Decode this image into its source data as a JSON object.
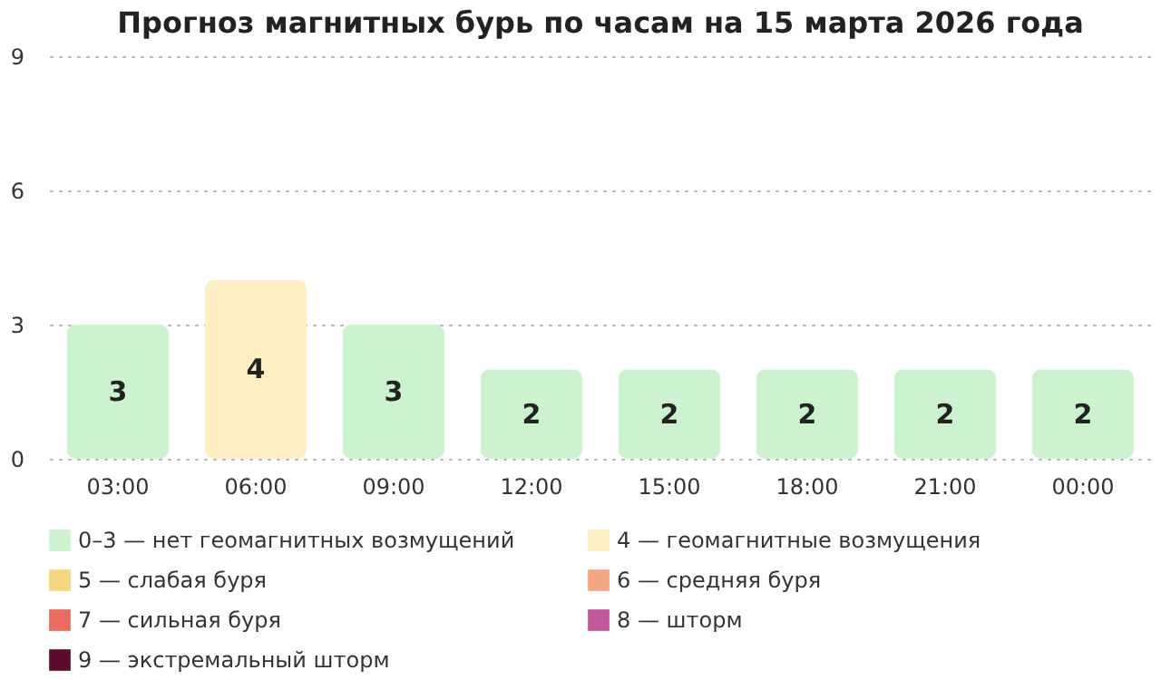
{
  "chart_data": {
    "type": "bar",
    "title": "Прогноз магнитных бурь по часам на 15 марта 2026 года",
    "categories": [
      "03:00",
      "06:00",
      "09:00",
      "12:00",
      "15:00",
      "18:00",
      "21:00",
      "00:00"
    ],
    "series": [
      {
        "name": "0–3 — нет геомагнитных возмущений",
        "color": "#cdf2cf",
        "values": [
          3,
          null,
          3,
          2,
          2,
          2,
          2,
          2
        ]
      },
      {
        "name": "4 — геомагнитные возмущения",
        "color": "#fdeec4",
        "values": [
          null,
          4,
          null,
          null,
          null,
          null,
          null,
          null
        ]
      },
      {
        "name": "5 — слабая буря",
        "color": "#f6d57f",
        "values": [
          null,
          null,
          null,
          null,
          null,
          null,
          null,
          null
        ]
      },
      {
        "name": "6 — средняя буря",
        "color": "#f4a67e",
        "values": [
          null,
          null,
          null,
          null,
          null,
          null,
          null,
          null
        ]
      },
      {
        "name": "7 — сильная буря",
        "color": "#ea6a5c",
        "values": [
          null,
          null,
          null,
          null,
          null,
          null,
          null,
          null
        ]
      },
      {
        "name": "8 — шторм",
        "color": "#c2579c",
        "values": [
          null,
          null,
          null,
          null,
          null,
          null,
          null,
          null
        ]
      },
      {
        "name": "9 — экстремальный шторм",
        "color": "#5c0b2c",
        "values": [
          null,
          null,
          null,
          null,
          null,
          null,
          null,
          null
        ]
      }
    ],
    "ylim": [
      0,
      9
    ],
    "yticks": [
      0,
      3,
      6,
      9
    ],
    "grid": "y",
    "data_labels": true,
    "legend": "bottom"
  }
}
